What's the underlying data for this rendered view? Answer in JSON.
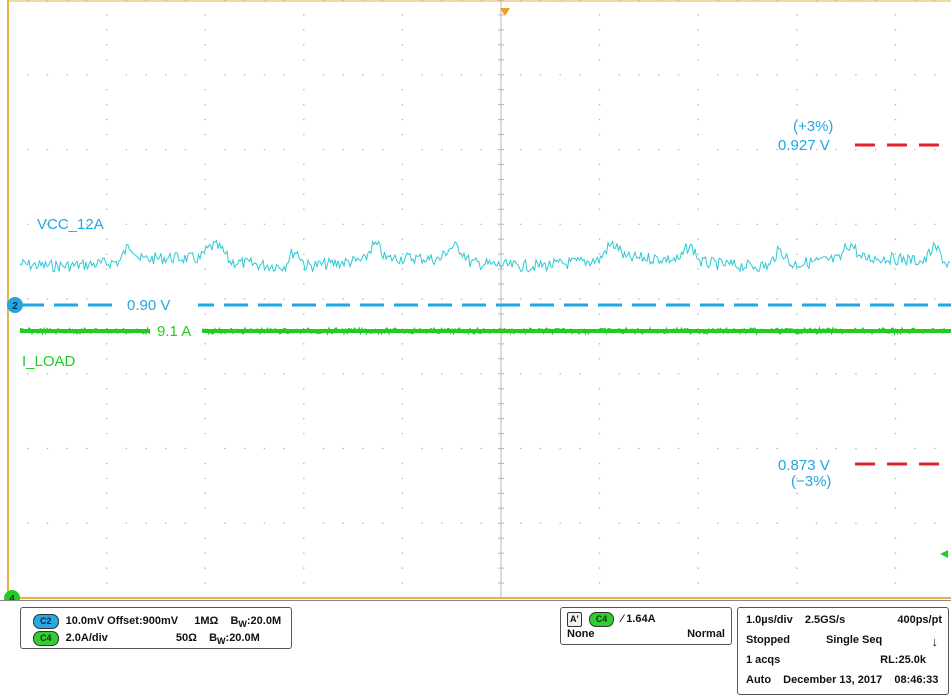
{
  "colors": {
    "grid_border": "#e7b24a",
    "grid_dots": "#b9b9b9",
    "ch2": "#1ea7e1",
    "ch2_trace": "#2cc9d4",
    "ch4": "#22cc22",
    "limit": "#e0242b",
    "trigger_marker": "#f0a020"
  },
  "labels": {
    "vcc_name": "VCC_12A",
    "iload_name": "I_LOAD",
    "nominal_v": "0.90 V",
    "load_a": "9.1 A",
    "upper_pct": "(+3%)",
    "upper_v": "0.927 V",
    "lower_v": "0.873 V",
    "lower_pct": "(−3%)",
    "ch2_marker": "2",
    "ch4_marker": "4"
  },
  "chart_data": {
    "type": "line",
    "x_unit_per_div": "1.0µs/div",
    "divisions": {
      "x": 10,
      "y": 8
    },
    "series": [
      {
        "name": "VCC_12A",
        "channel": "C2",
        "nominal": 0.9,
        "upper_limit": 0.927,
        "lower_limit": 0.873
      },
      {
        "name": "I_LOAD",
        "channel": "C4",
        "value": 9.1
      }
    ]
  },
  "status": {
    "c2_badge": "C2",
    "c2_text": "10.0mV  Offset:900mV",
    "c2_imp": "1MΩ",
    "c2_bw": "B",
    "c2_bw_sub": "W",
    "c2_bw_val": ":20.0M",
    "c4_badge": "C4",
    "c4_text": "2.0A/div",
    "c4_imp": "50Ω",
    "c4_bw": "B",
    "c4_bw_sub": "W",
    "c4_bw_val": ":20.0M",
    "trig_a": "A'",
    "trig_badge": "C4",
    "trig_level": "1.64A",
    "trig_coupling": "None",
    "trig_mode": "Normal",
    "timebase": "1.0µs/div",
    "sample_rate": "2.5GS/s",
    "resolution": "400ps/pt",
    "run_state": "Stopped",
    "acq_mode": "Single Seq",
    "acqs": "1 acqs",
    "record_length": "RL:25.0k",
    "mode": "Auto",
    "date": "December 13, 2017",
    "time": "08:46:33"
  }
}
